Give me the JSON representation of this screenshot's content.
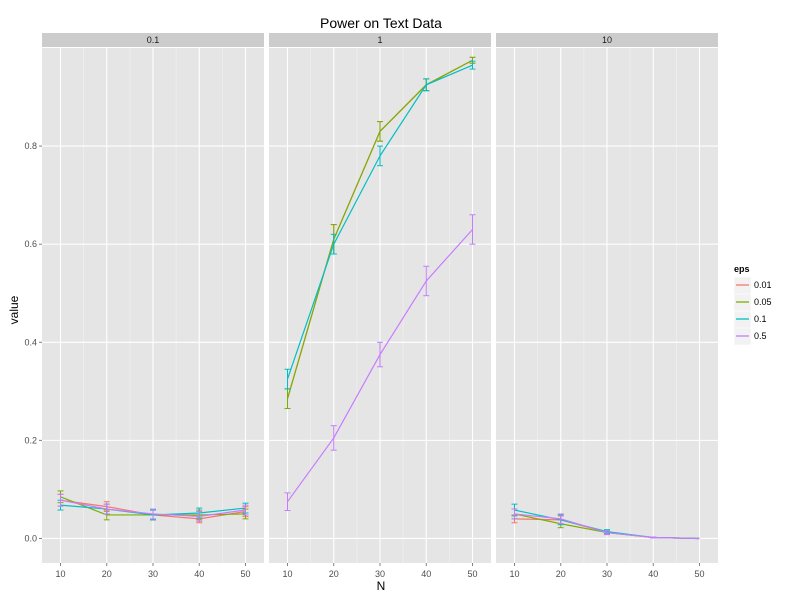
{
  "chart_data": {
    "type": "line",
    "title": "Power on Text Data",
    "xlabel": "N",
    "ylabel": "value",
    "x": [
      10,
      20,
      30,
      40,
      50
    ],
    "x_ticks": [
      "10",
      "20",
      "30",
      "40",
      "50"
    ],
    "y_ticks": [
      "0.0",
      "0.2",
      "0.4",
      "0.6",
      "0.8"
    ],
    "ylim": [
      -0.05,
      1.0
    ],
    "grid": true,
    "legend_title": "eps",
    "legend_position": "right",
    "error_bars": true,
    "series_keys": [
      {
        "name": "0.01",
        "color": "#f8766d"
      },
      {
        "name": "0.05",
        "color": "#7cae00"
      },
      {
        "name": "0.1",
        "color": "#00bfc4"
      },
      {
        "name": "0.5",
        "color": "#c77cff"
      }
    ],
    "facets": [
      {
        "label": "0.1",
        "series": [
          {
            "name": "0.01",
            "values": [
              0.078,
              0.065,
              0.048,
              0.04,
              0.055
            ],
            "err": [
              0.012,
              0.01,
              0.01,
              0.008,
              0.01
            ]
          },
          {
            "name": "0.05",
            "values": [
              0.085,
              0.048,
              0.048,
              0.048,
              0.05
            ],
            "err": [
              0.012,
              0.01,
              0.01,
              0.01,
              0.01
            ]
          },
          {
            "name": "0.1",
            "values": [
              0.068,
              0.06,
              0.048,
              0.052,
              0.062
            ],
            "err": [
              0.01,
              0.01,
              0.01,
              0.01,
              0.01
            ]
          },
          {
            "name": "0.5",
            "values": [
              0.078,
              0.06,
              0.05,
              0.045,
              0.058
            ],
            "err": [
              0.012,
              0.01,
              0.01,
              0.01,
              0.01
            ]
          }
        ]
      },
      {
        "label": "1",
        "series": [
          {
            "name": "0.01",
            "values": [
              0.285,
              0.61,
              0.83,
              0.925,
              0.975
            ],
            "err": [
              0.02,
              0.03,
              0.02,
              0.012,
              0.006
            ]
          },
          {
            "name": "0.05",
            "values": [
              0.285,
              0.61,
              0.83,
              0.925,
              0.975
            ],
            "err": [
              0.02,
              0.03,
              0.02,
              0.012,
              0.006
            ]
          },
          {
            "name": "0.1",
            "values": [
              0.325,
              0.6,
              0.78,
              0.925,
              0.965
            ],
            "err": [
              0.02,
              0.02,
              0.02,
              0.012,
              0.008
            ]
          },
          {
            "name": "0.5",
            "values": [
              0.075,
              0.205,
              0.375,
              0.525,
              0.63
            ],
            "err": [
              0.018,
              0.025,
              0.025,
              0.03,
              0.03
            ]
          }
        ]
      },
      {
        "label": "10",
        "series": [
          {
            "name": "0.01",
            "values": [
              0.04,
              0.038,
              0.012,
              0.002,
              0.0
            ],
            "err": [
              0.008,
              0.008,
              0.004,
              0.001,
              0.0
            ]
          },
          {
            "name": "0.05",
            "values": [
              0.05,
              0.03,
              0.012,
              0.002,
              0.0
            ],
            "err": [
              0.01,
              0.008,
              0.004,
              0.001,
              0.0
            ]
          },
          {
            "name": "0.1",
            "values": [
              0.058,
              0.038,
              0.014,
              0.002,
              0.0
            ],
            "err": [
              0.012,
              0.01,
              0.004,
              0.001,
              0.0
            ]
          },
          {
            "name": "0.5",
            "values": [
              0.05,
              0.04,
              0.012,
              0.002,
              0.0
            ],
            "err": [
              0.01,
              0.01,
              0.004,
              0.001,
              0.0
            ]
          }
        ]
      }
    ]
  }
}
